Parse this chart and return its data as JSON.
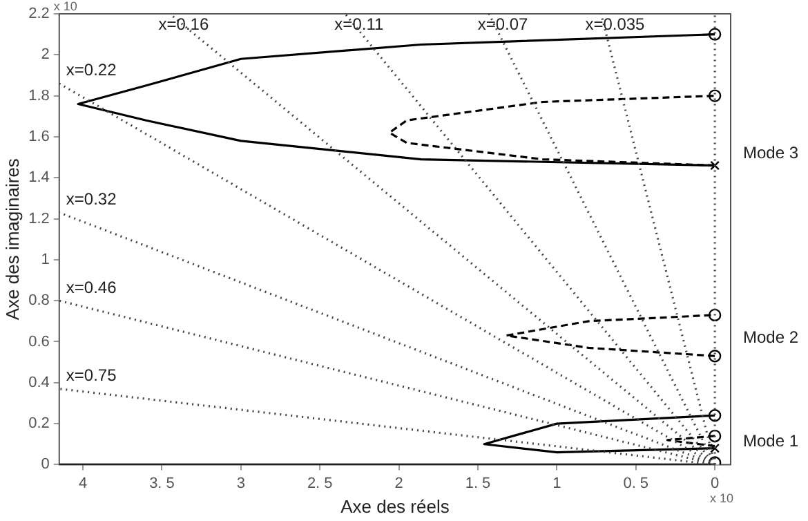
{
  "chart_data": {
    "type": "line",
    "xlabel": "Axe des réels",
    "ylabel": "Axe des imaginaires",
    "xlim": [
      4.15,
      -0.1
    ],
    "ylim": [
      0,
      2.2
    ],
    "xticks": [
      {
        "value": 4,
        "label": "4"
      },
      {
        "value": 3.5,
        "label": "3. 5"
      },
      {
        "value": 3,
        "label": "3"
      },
      {
        "value": 2.5,
        "label": "2. 5"
      },
      {
        "value": 2,
        "label": "2"
      },
      {
        "value": 1.5,
        "label": "1. 5"
      },
      {
        "value": 1,
        "label": "1"
      },
      {
        "value": 0.5,
        "label": "0. 5"
      },
      {
        "value": 0,
        "label": "0"
      }
    ],
    "yticks": [
      0,
      0.2,
      0.4,
      0.6,
      0.8,
      1,
      1.2,
      1.4,
      1.6,
      1.8,
      2,
      2.2
    ],
    "grid": false,
    "legend": false,
    "series": [
      {
        "line_style": "dotted",
        "color": "#444444",
        "x": [
          0,
          4.15
        ],
        "values": [
          0,
          0.37
        ]
      },
      {
        "line_style": "dotted",
        "color": "#444444",
        "x": [
          0,
          4.15
        ],
        "values": [
          0,
          0.8
        ]
      },
      {
        "line_style": "dotted",
        "color": "#444444",
        "x": [
          0,
          4.15
        ],
        "values": [
          0,
          1.23
        ]
      },
      {
        "line_style": "dotted",
        "color": "#444444",
        "x": [
          0,
          4.15
        ],
        "values": [
          0,
          1.86
        ]
      },
      {
        "line_style": "dotted",
        "color": "#444444",
        "x": [
          0,
          3.45
        ],
        "values": [
          0,
          2.2
        ]
      },
      {
        "line_style": "dotted",
        "color": "#444444",
        "x": [
          0,
          2.34
        ],
        "values": [
          0,
          2.2
        ]
      },
      {
        "line_style": "dotted",
        "color": "#444444",
        "x": [
          0,
          1.43
        ],
        "values": [
          0,
          2.2
        ]
      },
      {
        "line_style": "dotted",
        "color": "#444444",
        "x": [
          0,
          0.72
        ],
        "values": [
          0,
          2.2
        ]
      },
      {
        "line_style": "dotted",
        "color": "#444444",
        "x": [
          0,
          0
        ],
        "values": [
          0,
          2.2
        ]
      },
      {
        "line_style": "solid",
        "color": "#000000",
        "x": [
          0,
          4.15
        ],
        "values": [
          0,
          0
        ]
      },
      {
        "line_style": "solid",
        "color": "#000000",
        "x": [
          0,
          1.86,
          3.0,
          3.6,
          4.03,
          3.6,
          3.0,
          1.86,
          0
        ],
        "values": [
          1.46,
          1.49,
          1.58,
          1.68,
          1.76,
          1.85,
          1.98,
          2.05,
          2.1
        ]
      },
      {
        "line_style": "dashed",
        "color": "#000000",
        "x": [
          0,
          1.09,
          1.95,
          2.06,
          1.95,
          1.09,
          0
        ],
        "values": [
          1.46,
          1.49,
          1.57,
          1.62,
          1.68,
          1.77,
          1.8
        ]
      },
      {
        "line_style": "dashed",
        "color": "#000000",
        "x": [
          0,
          0.8,
          1.32,
          0.8,
          0
        ],
        "values": [
          0.53,
          0.57,
          0.63,
          0.7,
          0.73
        ]
      },
      {
        "line_style": "solid",
        "color": "#000000",
        "x": [
          0,
          1.0,
          1.46,
          1.0,
          0
        ],
        "values": [
          0.08,
          0.06,
          0.1,
          0.2,
          0.24
        ]
      },
      {
        "line_style": "dashed",
        "color": "#000000",
        "x": [
          0,
          0.3,
          0
        ],
        "values": [
          0.09,
          0.12,
          0.14
        ]
      },
      {
        "type": "scatter",
        "marker": "circle",
        "color": "#000000",
        "x": [
          0,
          0,
          0,
          0,
          0,
          0,
          0
        ],
        "values": [
          2.1,
          1.8,
          0.73,
          0.53,
          0.24,
          0.14,
          0.01
        ]
      },
      {
        "type": "scatter",
        "marker": "cross",
        "color": "#000000",
        "x": [
          0,
          0
        ],
        "values": [
          1.46,
          0.08
        ]
      }
    ],
    "annotations": [
      "x 10",
      "x 10",
      "Mode 3",
      "Mode 2",
      "Mode 1",
      {
        "text": "x=0.75",
        "x": 4.15,
        "y": 0.37
      },
      {
        "text": "x=0.46",
        "x": 4.15,
        "y": 0.8
      },
      {
        "text": "x=0.32",
        "x": 4.15,
        "y": 1.23
      },
      {
        "text": "x=0.22",
        "x": 4.15,
        "y": 1.86
      },
      {
        "text": "x=0.16",
        "x": 3.45,
        "y": 2.2
      },
      {
        "text": "x=0.11",
        "x": 2.34,
        "y": 2.2
      },
      {
        "text": "x=0.07",
        "x": 1.43,
        "y": 2.2
      },
      {
        "text": "x=0.035",
        "x": 0.72,
        "y": 2.2
      }
    ]
  }
}
